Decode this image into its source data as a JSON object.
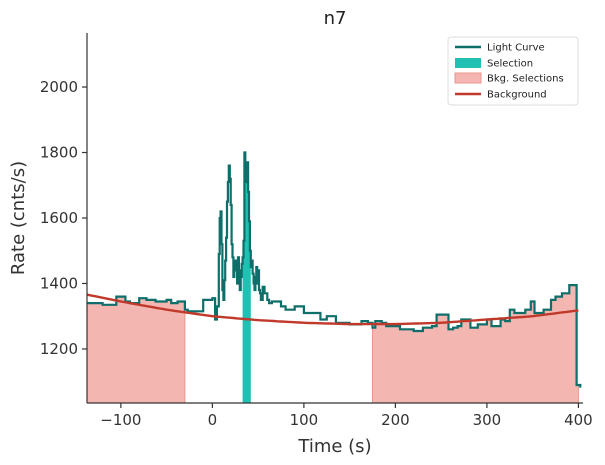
{
  "chart_data": {
    "type": "line",
    "title": "n7",
    "xlabel": "Time (s)",
    "ylabel": "Rate (cnts/s)",
    "xlim": [
      -137,
      405
    ],
    "ylim": [
      1035,
      2165
    ],
    "xticks": [
      -100,
      0,
      100,
      200,
      300,
      400
    ],
    "xtick_labels": [
      "−100",
      "0",
      "100",
      "200",
      "300",
      "400"
    ],
    "yticks": [
      1200,
      1400,
      1600,
      1800,
      2000
    ],
    "ytick_labels": [
      "1200",
      "1400",
      "1600",
      "1800",
      "2000"
    ],
    "grid": false,
    "legend_position": "top-right",
    "legend": [
      "Light Curve",
      "Selection",
      "Bkg. Selections",
      "Background"
    ],
    "colors": {
      "light_curve": "#0d6e6a",
      "selection": "#20c0b2",
      "bkg_selection_fill": "#f4b6b0",
      "bkg_selection_edge": "#e9958d",
      "background": "#c0392b"
    },
    "series": [
      {
        "name": "Light Curve",
        "style": "step",
        "x": [
          -137,
          -120,
          -105,
          -95,
          -90,
          -80,
          -72,
          -62,
          -50,
          -45,
          -38,
          -30,
          -27,
          -10,
          0,
          3,
          5,
          7,
          8,
          9,
          10,
          11,
          12,
          13,
          14,
          15,
          16,
          17,
          18,
          19,
          20,
          21,
          22,
          23,
          24,
          25,
          26,
          27,
          28,
          29,
          30,
          31,
          32,
          33,
          34,
          35,
          36,
          37,
          38,
          39,
          40,
          41,
          42,
          43,
          44,
          45,
          46,
          47,
          48,
          49,
          50,
          51,
          52,
          53,
          55,
          57,
          60,
          62,
          65,
          70,
          75,
          80,
          90,
          100,
          118,
          125,
          135,
          150,
          163,
          170,
          175,
          178,
          185,
          190,
          205,
          220,
          230,
          240,
          245,
          258,
          263,
          268,
          272,
          282,
          290,
          300,
          305,
          315,
          320,
          325,
          330,
          342,
          348,
          352,
          362,
          370,
          375,
          382,
          390,
          398,
          402
        ],
        "y": [
          1340,
          1335,
          1360,
          1345,
          1340,
          1355,
          1350,
          1345,
          1350,
          1340,
          1345,
          1320,
          1315,
          1350,
          1355,
          1290,
          1330,
          1490,
          1600,
          1620,
          1520,
          1380,
          1350,
          1410,
          1470,
          1540,
          1650,
          1710,
          1760,
          1720,
          1640,
          1520,
          1480,
          1420,
          1440,
          1470,
          1450,
          1400,
          1480,
          1440,
          1380,
          1420,
          1460,
          1480,
          1530,
          1800,
          1760,
          1710,
          1770,
          1680,
          1590,
          1500,
          1450,
          1470,
          1430,
          1400,
          1380,
          1420,
          1450,
          1400,
          1440,
          1380,
          1370,
          1350,
          1390,
          1370,
          1350,
          1340,
          1345,
          1345,
          1330,
          1320,
          1330,
          1310,
          1290,
          1300,
          1280,
          1275,
          1285,
          1280,
          1265,
          1285,
          1280,
          1270,
          1260,
          1255,
          1265,
          1270,
          1305,
          1260,
          1265,
          1270,
          1290,
          1265,
          1275,
          1290,
          1270,
          1290,
          1285,
          1320,
          1310,
          1320,
          1345,
          1310,
          1320,
          1350,
          1360,
          1370,
          1395,
          1090,
          1085
        ]
      },
      {
        "name": "Background",
        "style": "curve",
        "x": [
          -137,
          -100,
          -50,
          0,
          50,
          100,
          150,
          200,
          250,
          300,
          350,
          400
        ],
        "y": [
          1366,
          1345,
          1320,
          1300,
          1288,
          1280,
          1276,
          1276,
          1280,
          1290,
          1300,
          1318
        ]
      }
    ],
    "selection": {
      "name": "Selection",
      "x_range": [
        33,
        42
      ]
    },
    "bkg_selections": [
      {
        "name": "Bkg. Selections",
        "x_range": [
          -137,
          -30
        ]
      },
      {
        "name": "Bkg. Selections",
        "x_range": [
          175,
          400
        ]
      }
    ]
  }
}
